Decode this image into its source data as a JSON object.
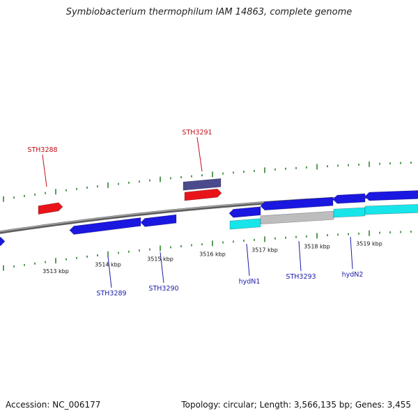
{
  "title": "Symbiobacterium thermophilum IAM 14863, complete genome",
  "footer": {
    "accession": "Accession: NC_006177",
    "summary": "Topology: circular; Length: 3,566,135 bp; Genes: 3,455"
  },
  "colors": {
    "backbone": "#7a7a7a",
    "tick": "#1f7a1f",
    "gene_forward": "#e8141a",
    "gene_reverse": "#1a17e0",
    "gene_other": "#4a4a8c",
    "cds_cyan": "#17e5ea",
    "cds_grey": "#bdbdbd",
    "label_forward": "#c01018",
    "label_reverse": "#1a1aa8"
  },
  "scale": {
    "ticks": [
      {
        "label": "3513 kbp"
      },
      {
        "label": "3514 kbp"
      },
      {
        "label": "3515 kbp"
      },
      {
        "label": "3516 kbp"
      },
      {
        "label": "3517 kbp"
      },
      {
        "label": "3518 kbp"
      },
      {
        "label": "3519 kbp"
      }
    ]
  },
  "genes": {
    "labels": [
      {
        "name": "STH3288",
        "strand": "forward"
      },
      {
        "name": "STH3291",
        "strand": "forward"
      },
      {
        "name": "STH3289",
        "strand": "reverse"
      },
      {
        "name": "STH3290",
        "strand": "reverse"
      },
      {
        "name": "hydN1",
        "strand": "reverse"
      },
      {
        "name": "STH3293",
        "strand": "reverse"
      },
      {
        "name": "hydN2",
        "strand": "reverse"
      }
    ]
  }
}
